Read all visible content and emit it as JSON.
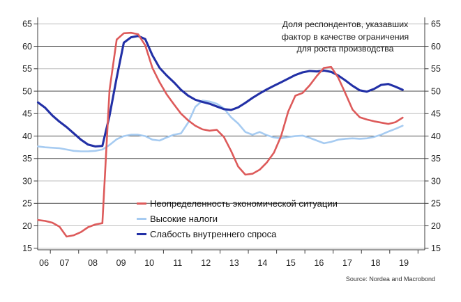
{
  "annotation": {
    "lines": [
      "Доля респондентов, указавших",
      "фактор в качестве ограничения",
      "для роста производства"
    ]
  },
  "source": {
    "text": "Source: Nordea and Macrobond"
  },
  "chart_data": {
    "type": "line",
    "title": "",
    "xlabel": "",
    "ylabel": "",
    "ylim": [
      15,
      65
    ],
    "y_ticks": [
      15,
      20,
      25,
      30,
      35,
      40,
      45,
      50,
      55,
      60,
      65
    ],
    "dark_gridlines": [
      25,
      35,
      40,
      50,
      60
    ],
    "x_tick_labels": [
      "06",
      "07",
      "08",
      "09",
      "10",
      "11",
      "12",
      "13",
      "14",
      "15",
      "16",
      "17",
      "18",
      "19"
    ],
    "x_sampling": "quarterly, mid-2006 through mid-2019",
    "legend_position": "inside-bottom-center",
    "grid": "horizontal",
    "series": [
      {
        "name": "Неопределенность экономической ситуации",
        "color": "#dd5a5a",
        "width": 2.6,
        "values": [
          21.3,
          21.1,
          20.7,
          19.8,
          17.6,
          17.9,
          18.6,
          19.7,
          20.3,
          20.6,
          50.2,
          61.5,
          62.9,
          63.0,
          62.7,
          60.2,
          55.2,
          52.0,
          49.3,
          47.1,
          45.0,
          43.5,
          42.3,
          41.5,
          41.2,
          41.4,
          39.8,
          36.7,
          33.2,
          31.4,
          31.6,
          32.5,
          34.1,
          36.3,
          40.0,
          45.5,
          49.0,
          49.6,
          51.3,
          53.4,
          55.2,
          55.4,
          53.0,
          49.5,
          45.9,
          44.2,
          43.7,
          43.3,
          43.0,
          42.7,
          43.1,
          44.1
        ]
      },
      {
        "name": "Высокие налоги",
        "color": "#a6cbf1",
        "width": 2.6,
        "values": [
          37.7,
          37.5,
          37.4,
          37.3,
          37.0,
          36.7,
          36.6,
          36.6,
          36.7,
          37.0,
          38.0,
          39.3,
          40.0,
          40.3,
          40.3,
          40.0,
          39.2,
          39.0,
          39.7,
          40.3,
          40.6,
          43.0,
          46.5,
          47.9,
          47.7,
          47.2,
          46.2,
          44.2,
          42.8,
          40.9,
          40.3,
          40.9,
          40.2,
          39.7,
          39.5,
          39.8,
          40.0,
          40.1,
          39.6,
          39.0,
          38.4,
          38.7,
          39.2,
          39.4,
          39.5,
          39.4,
          39.5,
          39.8,
          40.3,
          41.0,
          41.6,
          42.3
        ]
      },
      {
        "name": "Слабость внутреннего спроса",
        "color": "#2230a6",
        "width": 3.1,
        "values": [
          47.5,
          46.3,
          44.6,
          43.2,
          42.0,
          40.6,
          39.2,
          38.1,
          37.7,
          37.8,
          44.5,
          53.0,
          60.8,
          62.0,
          62.3,
          61.6,
          58.0,
          55.2,
          53.5,
          52.0,
          50.3,
          49.0,
          48.1,
          47.6,
          47.2,
          46.6,
          46.0,
          45.8,
          46.4,
          47.4,
          48.5,
          49.5,
          50.4,
          51.2,
          52.0,
          52.8,
          53.6,
          54.2,
          54.5,
          54.4,
          54.6,
          54.3,
          53.5,
          52.4,
          51.2,
          50.2,
          49.9,
          50.5,
          51.4,
          51.6,
          51.0,
          50.3
        ]
      }
    ]
  }
}
